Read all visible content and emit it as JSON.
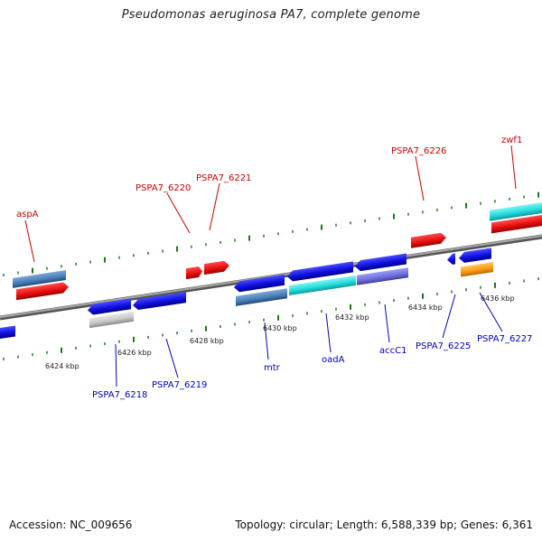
{
  "title": "Pseudomonas aeruginosa PA7, complete genome",
  "footer": {
    "accession": "Accession: NC_009656",
    "summary": "Topology: circular; Length: 6,588,339 bp; Genes: 6,361"
  },
  "colors": {
    "forward_gene": "#e81010",
    "reverse_gene": "#1010e0",
    "steel": "#4a7fb8",
    "cyan": "#22dddd",
    "lavender": "#7070e0",
    "orange": "#ff9a10",
    "gray": "#c8c8c8",
    "backbone": "#808080",
    "ticks": "#1a7a1a",
    "label_forward": "#cc0000",
    "label_reverse": "#0000bb"
  },
  "scale_labels": [
    "6424 kbp",
    "6426 kbp",
    "6428 kbp",
    "6430 kbp",
    "6432 kbp",
    "6434 kbp",
    "6436 kbp"
  ],
  "forward_labels": [
    "aspA",
    "PSPA7_6220",
    "PSPA7_6221",
    "PSPA7_6226",
    "zwf1"
  ],
  "reverse_labels": [
    "PSPA7_6218",
    "PSPA7_6219",
    "mtr",
    "oadA",
    "accC1",
    "PSPA7_6225",
    "PSPA7_6227"
  ]
}
